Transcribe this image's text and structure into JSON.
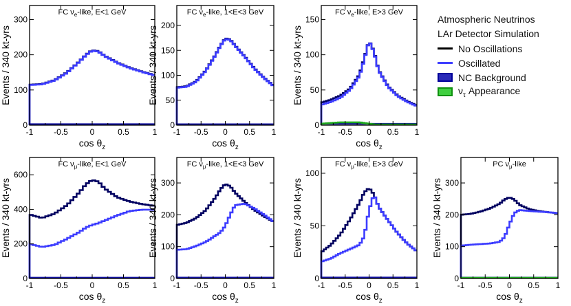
{
  "legend": {
    "title_line1": "Atmospheric Neutrinos",
    "title_line2": "LAr Detector Simulation",
    "entries": [
      {
        "label": "No Oscillations",
        "color": "#000000",
        "kind": "line"
      },
      {
        "label": "Oscillated",
        "color": "#3f3fff",
        "kind": "line"
      },
      {
        "label": "NC Background",
        "color": "#1c1ca8",
        "border": "#00009a",
        "kind": "box"
      },
      {
        "label": "ντ Appearance",
        "label_main": "ν",
        "label_sub": "τ",
        "label_rest": " Appearance",
        "color": "#2fbf2f",
        "border": "#109010",
        "kind": "box"
      }
    ]
  },
  "colors": {
    "no_osc": "#000060",
    "osc": "#3c3cff",
    "nc": "#1010a0",
    "nutau": "#1fa81f"
  },
  "chart_data": [
    {
      "type": "line",
      "title": "FC νe-like, E<1 GeV",
      "title_parts": [
        "FC ν",
        "e",
        "-like, E<1 GeV"
      ],
      "xlabel": "cos θz",
      "ylabel": "Events / 340 kt-yrs",
      "xlim": [
        -1,
        1
      ],
      "ylim": [
        0,
        340
      ],
      "xticks": [
        -1,
        -0.5,
        0,
        0.5,
        1
      ],
      "xtick_labels": [
        "-1",
        "-0.5",
        "0",
        "0.5",
        "1"
      ],
      "yticks": [
        0,
        100,
        200,
        300
      ],
      "ytick_labels": [
        "0",
        "100",
        "200",
        "300"
      ],
      "x": [
        -1,
        -0.8,
        -0.6,
        -0.4,
        -0.2,
        -0.1,
        0,
        0.1,
        0.2,
        0.4,
        0.6,
        0.8,
        1
      ],
      "series": [
        {
          "name": "No Oscillations",
          "values": [
            115,
            117,
            128,
            150,
            182,
            200,
            213,
            210,
            197,
            178,
            163,
            152,
            142
          ]
        },
        {
          "name": "Oscillated",
          "values": [
            114,
            116,
            127,
            149,
            181,
            199,
            212,
            209,
            196,
            177,
            162,
            151,
            141
          ]
        },
        {
          "name": "NC Background",
          "values": [
            3,
            3,
            3,
            3,
            3,
            3,
            3,
            3,
            3,
            3,
            3,
            3,
            3
          ]
        }
      ]
    },
    {
      "type": "line",
      "title": "FC νe-like, 1<E<3 GeV",
      "title_parts": [
        "FC ν",
        "e",
        "-like, 1<E<3 GeV"
      ],
      "xlabel": "cos θz",
      "ylabel": "Events / 340 kt-yrs",
      "xlim": [
        -1,
        1
      ],
      "ylim": [
        0,
        240
      ],
      "xticks": [
        -1,
        -0.5,
        0,
        0.5,
        1
      ],
      "xtick_labels": [
        "-1",
        "-0.5",
        "0",
        "0.5",
        "1"
      ],
      "yticks": [
        0,
        50,
        100,
        150,
        200
      ],
      "ytick_labels": [
        "0",
        "50",
        "100",
        "150",
        "200"
      ],
      "x": [
        -1,
        -0.8,
        -0.6,
        -0.4,
        -0.2,
        -0.1,
        0,
        0.1,
        0.2,
        0.4,
        0.6,
        0.8,
        1
      ],
      "series": [
        {
          "name": "No Oscillations",
          "values": [
            76,
            78,
            88,
            110,
            142,
            160,
            174,
            172,
            160,
            138,
            114,
            95,
            79
          ]
        },
        {
          "name": "Oscillated",
          "values": [
            75,
            77,
            87,
            109,
            141,
            159,
            173,
            171,
            159,
            137,
            113,
            94,
            78
          ]
        },
        {
          "name": "NC Background",
          "values": [
            2,
            2,
            2,
            2,
            2,
            2,
            2,
            2,
            2,
            2,
            2,
            2,
            2
          ]
        }
      ]
    },
    {
      "type": "line",
      "title": "FC νe-like, E>3 GeV",
      "title_parts": [
        "FC ν",
        "e",
        "-like, E>3 GeV"
      ],
      "xlabel": "cos θz",
      "ylabel": "Events / 340 kt-yrs",
      "xlim": [
        -1,
        1
      ],
      "ylim": [
        0,
        170
      ],
      "xticks": [
        -1,
        -0.5,
        0,
        0.5,
        1
      ],
      "xtick_labels": [
        "-1",
        "-0.5",
        "0",
        "0.5",
        "1"
      ],
      "yticks": [
        0,
        50,
        100,
        150
      ],
      "ytick_labels": [
        "0",
        "50",
        "100",
        "150"
      ],
      "x": [
        -1,
        -0.8,
        -0.6,
        -0.4,
        -0.2,
        -0.1,
        0,
        0.1,
        0.2,
        0.4,
        0.6,
        0.8,
        1
      ],
      "series": [
        {
          "name": "No Oscillations",
          "values": [
            32,
            36,
            42,
            52,
            72,
            95,
            120,
            105,
            78,
            55,
            42,
            34,
            28
          ]
        },
        {
          "name": "Oscillated",
          "values": [
            29,
            33,
            39,
            50,
            70,
            93,
            120,
            104,
            77,
            54,
            41,
            33,
            27
          ]
        },
        {
          "name": "NC Background",
          "values": [
            2,
            2,
            2,
            2,
            2,
            2,
            2,
            2,
            2,
            2,
            2,
            2,
            2
          ]
        },
        {
          "name": "ντ Appearance",
          "values": [
            2,
            3,
            4,
            4,
            4,
            3,
            2,
            1,
            1,
            1,
            1,
            1,
            1
          ]
        }
      ]
    },
    {
      "type": "line",
      "title": "FC νμ-like, E<1 GeV",
      "title_parts": [
        "FC ν",
        "μ",
        "-like, E<1 GeV"
      ],
      "xlabel": "cos θz",
      "ylabel": "Events / 340 kt-yrs",
      "xlim": [
        -1,
        1
      ],
      "ylim": [
        0,
        700
      ],
      "xticks": [
        -1,
        -0.5,
        0,
        0.5,
        1
      ],
      "xtick_labels": [
        "-1",
        "-0.5",
        "0",
        "0.5",
        "1"
      ],
      "yticks": [
        0,
        200,
        400,
        600
      ],
      "ytick_labels": [
        "0",
        "200",
        "400",
        "600"
      ],
      "x": [
        -1,
        -0.8,
        -0.6,
        -0.4,
        -0.2,
        -0.1,
        0,
        0.1,
        0.2,
        0.4,
        0.6,
        0.8,
        1
      ],
      "series": [
        {
          "name": "No Oscillations",
          "values": [
            370,
            350,
            375,
            425,
            500,
            545,
            570,
            560,
            520,
            470,
            445,
            430,
            420
          ]
        },
        {
          "name": "Oscillated",
          "values": [
            200,
            182,
            195,
            230,
            270,
            295,
            310,
            320,
            335,
            365,
            390,
            398,
            398
          ]
        },
        {
          "name": "NC Background",
          "values": [
            5,
            5,
            5,
            5,
            5,
            5,
            5,
            5,
            5,
            5,
            5,
            5,
            5
          ]
        }
      ]
    },
    {
      "type": "line",
      "title": "FC νμ-like, 1<E<3 GeV",
      "title_parts": [
        "FC ν",
        "μ",
        "-like, 1<E<3 GeV"
      ],
      "xlabel": "cos θz",
      "ylabel": "Events / 340 kt-yrs",
      "xlim": [
        -1,
        1
      ],
      "ylim": [
        0,
        380
      ],
      "xticks": [
        -1,
        -0.5,
        0,
        0.5,
        1
      ],
      "xtick_labels": [
        "-1",
        "-0.5",
        "0",
        "0.5",
        "1"
      ],
      "yticks": [
        0,
        100,
        200,
        300
      ],
      "ytick_labels": [
        "0",
        "100",
        "200",
        "300"
      ],
      "x": [
        -1,
        -0.8,
        -0.6,
        -0.4,
        -0.2,
        -0.1,
        0,
        0.1,
        0.2,
        0.4,
        0.6,
        0.8,
        1
      ],
      "series": [
        {
          "name": "No Oscillations",
          "values": [
            168,
            175,
            190,
            215,
            255,
            280,
            297,
            290,
            270,
            240,
            215,
            195,
            178
          ]
        },
        {
          "name": "Oscillated",
          "values": [
            90,
            92,
            102,
            115,
            135,
            145,
            165,
            200,
            230,
            235,
            220,
            200,
            178
          ]
        },
        {
          "name": "NC Background",
          "values": [
            3,
            3,
            3,
            3,
            3,
            3,
            3,
            3,
            3,
            3,
            3,
            3,
            3
          ]
        }
      ]
    },
    {
      "type": "line",
      "title": "FC νμ-like, E>3 GeV",
      "title_parts": [
        "FC ν",
        "μ",
        "-like, E>3 GeV"
      ],
      "xlabel": "cos θz",
      "ylabel": "Events / 340 kt-yrs",
      "xlim": [
        -1,
        1
      ],
      "ylim": [
        0,
        115
      ],
      "xticks": [
        -1,
        -0.5,
        0,
        0.5,
        1
      ],
      "xtick_labels": [
        "-1",
        "-0.5",
        "0",
        "0.5",
        "1"
      ],
      "yticks": [
        0,
        50,
        100
      ],
      "ytick_labels": [
        "0",
        "50",
        "100"
      ],
      "x": [
        -1,
        -0.8,
        -0.6,
        -0.4,
        -0.2,
        -0.1,
        0,
        0.1,
        0.2,
        0.4,
        0.6,
        0.8,
        1
      ],
      "series": [
        {
          "name": "No Oscillations",
          "values": [
            25,
            32,
            42,
            56,
            72,
            82,
            86,
            80,
            68,
            55,
            43,
            33,
            26
          ]
        },
        {
          "name": "Oscillated",
          "values": [
            16,
            19,
            24,
            28,
            32,
            40,
            65,
            80,
            68,
            55,
            43,
            33,
            26
          ]
        },
        {
          "name": "NC Background",
          "values": [
            1,
            1,
            1,
            1,
            1,
            1,
            1,
            1,
            1,
            1,
            1,
            1,
            1
          ]
        }
      ]
    },
    {
      "type": "line",
      "title": "PC νμ-like",
      "title_parts": [
        "PC ν",
        "μ",
        "-like"
      ],
      "xlabel": "cos θz",
      "ylabel": "Events / 340 kt-yrs",
      "xlim": [
        -1,
        1
      ],
      "ylim": [
        0,
        380
      ],
      "xticks": [
        -1,
        -0.5,
        0,
        0.5,
        1
      ],
      "xtick_labels": [
        "-1",
        "-0.5",
        "0",
        "0.5",
        "1"
      ],
      "yticks": [
        0,
        100,
        200,
        300
      ],
      "ytick_labels": [
        "0",
        "100",
        "200",
        "300"
      ],
      "x": [
        -1,
        -0.8,
        -0.6,
        -0.4,
        -0.2,
        -0.1,
        0,
        0.1,
        0.2,
        0.4,
        0.6,
        0.8,
        1
      ],
      "series": [
        {
          "name": "No Oscillations",
          "values": [
            200,
            203,
            210,
            220,
            235,
            248,
            255,
            248,
            232,
            218,
            212,
            208,
            205
          ]
        },
        {
          "name": "Oscillated",
          "values": [
            103,
            106,
            108,
            110,
            115,
            130,
            170,
            205,
            215,
            212,
            210,
            208,
            205
          ]
        },
        {
          "name": "NC Background",
          "values": [
            3,
            3,
            3,
            3,
            3,
            3,
            3,
            3,
            3,
            3,
            3,
            3,
            3
          ]
        },
        {
          "name": "ντ Appearance",
          "values": [
            2,
            2,
            2,
            2,
            2,
            2,
            2,
            2,
            2,
            2,
            2,
            2,
            2
          ]
        }
      ]
    }
  ]
}
